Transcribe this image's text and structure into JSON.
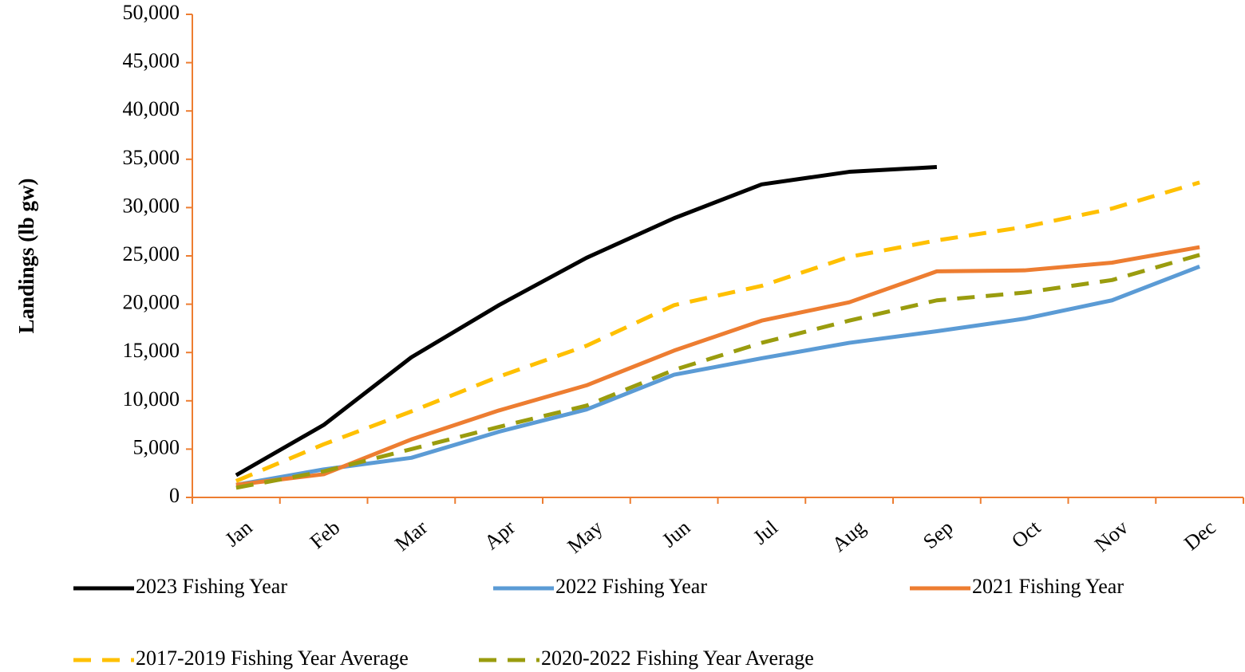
{
  "chart_data": {
    "type": "line",
    "y_label": "Landings (lb gw)",
    "categories": [
      "Jan",
      "Feb",
      "Mar",
      "Apr",
      "May",
      "Jun",
      "Jul",
      "Aug",
      "Sep",
      "Oct",
      "Nov",
      "Dec"
    ],
    "series": [
      {
        "name": "2023 Fishing Year",
        "color": "#000000",
        "dash": false,
        "values": [
          2300,
          7500,
          14500,
          19900,
          24800,
          28900,
          32400,
          33700,
          34200,
          null,
          null,
          null
        ]
      },
      {
        "name": "2022 Fishing Year",
        "color": "#5b9bd5",
        "dash": false,
        "values": [
          1300,
          2900,
          4100,
          6800,
          9100,
          12700,
          14400,
          16000,
          17200,
          18500,
          20400,
          23900
        ]
      },
      {
        "name": "2021 Fishing Year",
        "color": "#ed7d31",
        "dash": false,
        "values": [
          1300,
          2400,
          6000,
          9000,
          11600,
          15200,
          18300,
          20200,
          23400,
          23500,
          24300,
          25900
        ]
      },
      {
        "name": "2017-2019 Fishing Year Average",
        "color": "#ffc000",
        "dash": true,
        "values": [
          1700,
          5500,
          8900,
          12500,
          15700,
          19900,
          21900,
          24900,
          26600,
          28000,
          29900,
          32600
        ]
      },
      {
        "name": "2020-2022 Fishing Year Average",
        "color": "#9a9c0e",
        "dash": true,
        "values": [
          1000,
          2700,
          5000,
          7300,
          9500,
          13200,
          16000,
          18300,
          20400,
          21200,
          22500,
          25100
        ]
      }
    ],
    "ylim": [
      0,
      50000
    ],
    "yticks": [
      0,
      {
        "value": 5000,
        "label": "5,000"
      },
      {
        "value": 10000,
        "label": "10,000"
      },
      {
        "value": 15000,
        "label": "15,000"
      },
      {
        "value": 20000,
        "label": "20,000"
      },
      {
        "value": 25000,
        "label": "25,000"
      },
      {
        "value": 30000,
        "label": "30,000"
      },
      {
        "value": 35000,
        "label": "35,000"
      },
      {
        "value": 40000,
        "label": "40,000"
      },
      {
        "value": 45000,
        "label": "45,000"
      },
      {
        "value": 50000,
        "label": "50,000"
      }
    ],
    "axis_color": "#ed7d31",
    "grid": false,
    "legend": "bottom"
  }
}
